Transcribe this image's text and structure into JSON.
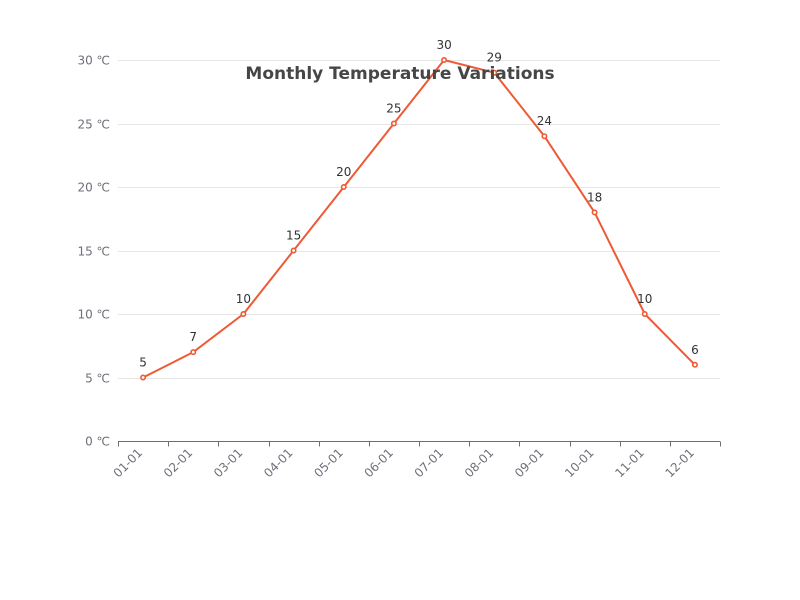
{
  "chart_data": {
    "type": "line",
    "title": "Monthly Temperature Variations",
    "xlabel": "",
    "ylabel": "",
    "categories": [
      "01-01",
      "02-01",
      "03-01",
      "04-01",
      "05-01",
      "06-01",
      "07-01",
      "08-01",
      "09-01",
      "10-01",
      "11-01",
      "12-01"
    ],
    "series": [
      {
        "values": [
          5,
          7,
          10,
          15,
          20,
          25,
          30,
          29,
          24,
          18,
          10,
          6
        ],
        "color": "#ee5a35"
      }
    ],
    "ylim": [
      0,
      30
    ],
    "y_ticks": [
      0,
      5,
      10,
      15,
      20,
      25,
      30
    ],
    "y_unit": "℃",
    "grid": true,
    "data_labels": true
  }
}
